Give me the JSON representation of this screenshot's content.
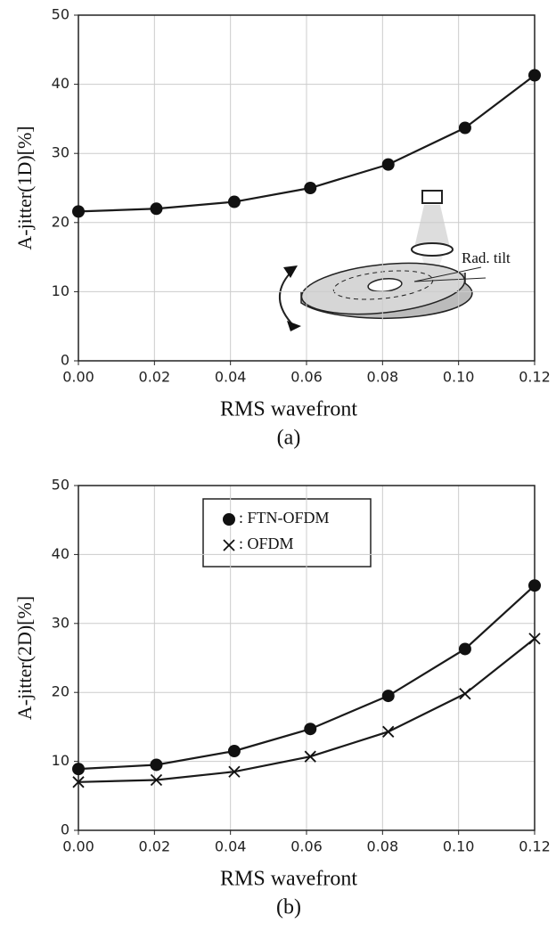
{
  "chart_data": [
    {
      "type": "line",
      "ylabel": "A-jitter(1D)[%]",
      "xlabel": "RMS wavefront",
      "caption": "(a)",
      "annotation": "Rad. tilt",
      "x": [
        0,
        0.0205,
        0.041,
        0.061,
        0.0815,
        0.1017,
        0.12
      ],
      "series": [
        {
          "color": "#1a1a1a",
          "marker": "circle",
          "values": [
            21.6,
            22.0,
            23.0,
            25.0,
            28.4,
            33.7,
            41.3
          ]
        }
      ],
      "xlim": [
        0,
        0.12
      ],
      "xticks": [
        {
          "value": 0,
          "label": "0.00"
        },
        {
          "value": 0.02,
          "label": "0.02"
        },
        {
          "value": 0.04,
          "label": "0.04"
        },
        {
          "value": 0.06,
          "label": "0.06"
        },
        {
          "value": 0.08,
          "label": "0.08"
        },
        {
          "value": 0.1,
          "label": "0.10"
        },
        {
          "value": 0.12,
          "label": "0.12"
        }
      ],
      "ylim": [
        0,
        50
      ],
      "yticks": [
        0,
        10,
        20,
        30,
        40,
        50
      ],
      "grid": true
    },
    {
      "type": "line",
      "ylabel": "A-jitter(2D)[%]",
      "xlabel": "RMS wavefront",
      "caption": "(b)",
      "x": [
        0,
        0.0205,
        0.041,
        0.061,
        0.0815,
        0.1017,
        0.12
      ],
      "series": [
        {
          "name": ": FTN-OFDM",
          "color": "#1a1a1a",
          "marker": "circle",
          "values": [
            8.9,
            9.5,
            11.5,
            14.7,
            19.5,
            26.3,
            35.5
          ]
        },
        {
          "name": ": OFDM",
          "color": "#1a1a1a",
          "marker": "x",
          "values": [
            7.0,
            7.3,
            8.5,
            10.7,
            14.3,
            19.8,
            27.8
          ]
        }
      ],
      "xlim": [
        0,
        0.12
      ],
      "xticks": [
        {
          "value": 0,
          "label": "0.00"
        },
        {
          "value": 0.02,
          "label": "0.02"
        },
        {
          "value": 0.04,
          "label": "0.04"
        },
        {
          "value": 0.06,
          "label": "0.06"
        },
        {
          "value": 0.08,
          "label": "0.08"
        },
        {
          "value": 0.1,
          "label": "0.10"
        },
        {
          "value": 0.12,
          "label": "0.12"
        }
      ],
      "ylim": [
        0,
        50
      ],
      "yticks": [
        0,
        10,
        20,
        30,
        40,
        50
      ],
      "grid": true,
      "legend": "top-left"
    }
  ]
}
